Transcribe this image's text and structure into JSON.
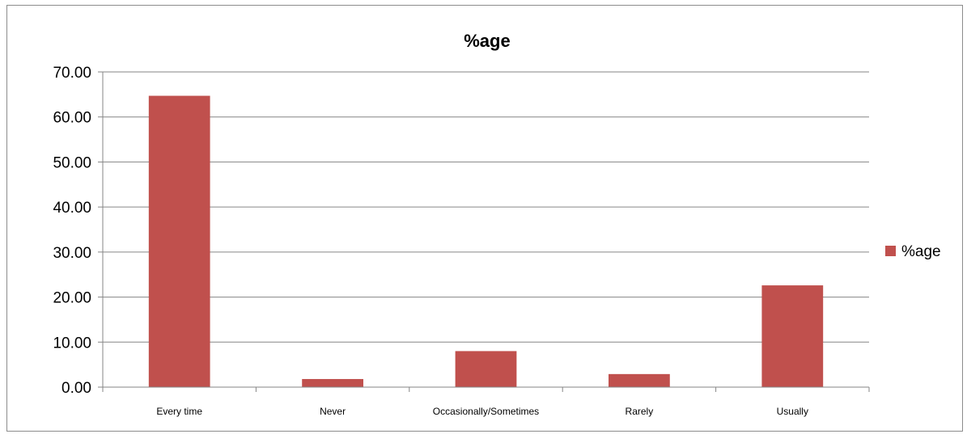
{
  "chart_data": {
    "type": "bar",
    "title": "%age",
    "xlabel": "",
    "ylabel": "",
    "categories": [
      "Every time",
      "Never",
      "Occasionally/Sometimes",
      "Rarely",
      "Usually"
    ],
    "series": [
      {
        "name": "%age",
        "values": [
          64.7,
          1.8,
          8.0,
          2.9,
          22.6
        ],
        "color": "#c0504d"
      }
    ],
    "ylim": [
      0,
      70
    ],
    "yticks": [
      0,
      10,
      20,
      30,
      40,
      50,
      60,
      70
    ],
    "ytick_labels": [
      "0.00",
      "10.00",
      "20.00",
      "30.00",
      "40.00",
      "50.00",
      "60.00",
      "70.00"
    ],
    "grid": true,
    "legend": "right",
    "colors": {
      "bar": "#c0504d",
      "grid": "#868686",
      "axis": "#868686"
    }
  }
}
